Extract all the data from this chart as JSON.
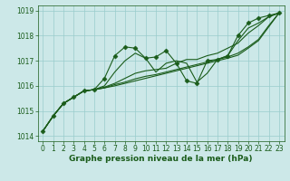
{
  "background_color": "#cce8e8",
  "plot_bg_color": "#cce8e8",
  "grid_color": "#99cccc",
  "line_color": "#1a5c1a",
  "xlabel": "Graphe pression niveau de la mer (hPa)",
  "ylim": [
    1013.8,
    1019.2
  ],
  "xlim": [
    -0.5,
    23.5
  ],
  "yticks": [
    1014,
    1015,
    1016,
    1017,
    1018,
    1019
  ],
  "xticks": [
    0,
    1,
    2,
    3,
    4,
    5,
    6,
    7,
    8,
    9,
    10,
    11,
    12,
    13,
    14,
    15,
    16,
    17,
    18,
    19,
    20,
    21,
    22,
    23
  ],
  "series": [
    [
      1014.2,
      1014.8,
      1015.3,
      1015.55,
      1015.8,
      1015.85,
      1016.3,
      1017.2,
      1017.55,
      1017.5,
      1017.1,
      1017.15,
      1017.4,
      1016.9,
      1016.2,
      1016.1,
      1017.0,
      1017.05,
      1017.2,
      1018.0,
      1018.5,
      1018.7,
      1018.8,
      1018.9
    ],
    [
      1014.2,
      1014.8,
      1015.3,
      1015.55,
      1015.8,
      1015.85,
      1016.0,
      1016.55,
      1017.0,
      1017.3,
      1017.1,
      1016.55,
      1016.9,
      1017.0,
      1016.9,
      1016.15,
      1016.5,
      1017.05,
      1017.2,
      1017.8,
      1018.3,
      1018.5,
      1018.75,
      1018.9
    ],
    [
      1014.2,
      1014.8,
      1015.3,
      1015.55,
      1015.8,
      1015.85,
      1015.95,
      1016.1,
      1016.3,
      1016.5,
      1016.6,
      1016.65,
      1016.7,
      1016.9,
      1017.05,
      1017.05,
      1017.2,
      1017.3,
      1017.5,
      1017.7,
      1018.1,
      1018.4,
      1018.75,
      1018.9
    ],
    [
      1014.2,
      1014.8,
      1015.3,
      1015.55,
      1015.8,
      1015.85,
      1015.92,
      1016.05,
      1016.15,
      1016.28,
      1016.38,
      1016.45,
      1016.55,
      1016.65,
      1016.75,
      1016.85,
      1016.95,
      1017.05,
      1017.15,
      1017.3,
      1017.55,
      1017.85,
      1018.4,
      1018.9
    ],
    [
      1014.2,
      1014.8,
      1015.3,
      1015.55,
      1015.8,
      1015.85,
      1015.92,
      1016.0,
      1016.1,
      1016.2,
      1016.3,
      1016.4,
      1016.5,
      1016.6,
      1016.7,
      1016.8,
      1016.9,
      1017.0,
      1017.1,
      1017.22,
      1017.5,
      1017.8,
      1018.35,
      1018.9
    ]
  ],
  "marker": "D",
  "markersize": 2.5,
  "linewidth": 0.8,
  "xlabel_fontsize": 6.5,
  "tick_fontsize": 5.5
}
